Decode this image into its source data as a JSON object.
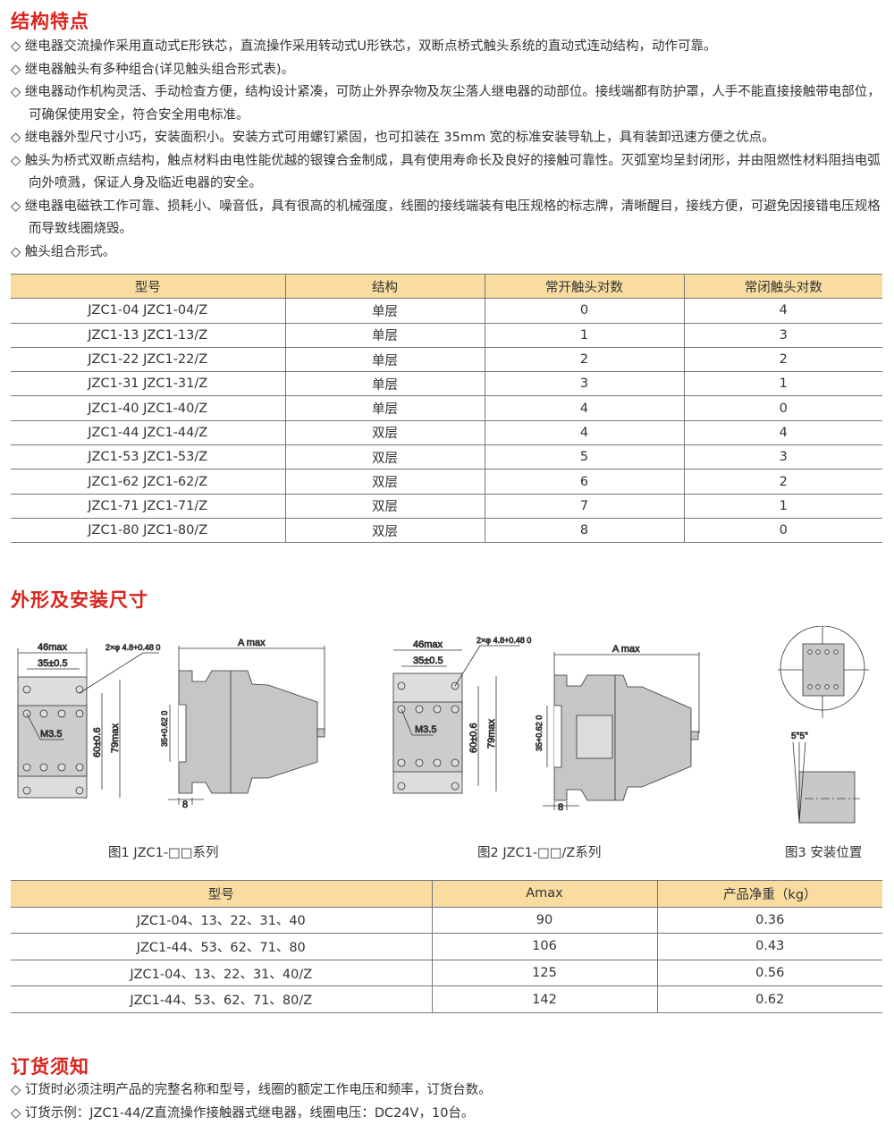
{
  "sections": {
    "features": "结构特点",
    "dimensions": "外形及安装尺寸",
    "ordering": "订货须知"
  },
  "features": [
    "◇ 继电器交流操作采用直动式E形铁芯，直流操作采用转动式U形铁芯，双断点桥式触头系统的直动式连动结构，动作可靠。",
    "◇ 继电器触头有多种组合(详见触头组合形式表)。",
    "◇ 继电器动作机构灵活、手动检查方便，结构设计紧凑，可防止外界杂物及灰尘落人继电器的动部位。接线端都有防护罩，人手不能直接接触带电部位，可确保使用安全，符合安全用电标准。",
    "◇ 继电器外型尺寸小巧，安装面积小。安装方式可用螺钉紧固，也可扣装在 35mm 宽的标准安装导轨上，具有装卸迅速方便之优点。",
    "◇ 触头为桥式双断点结构，触点材料由电性能优越的银镍合金制成，具有使用寿命长及良好的接触可靠性。灭弧室均呈封闭形，并由阻燃性材料阻挡电弧向外喷溅，保证人身及临近电器的安全。",
    "◇ 继电器电磁铁工作可靠、损耗小、噪音低，具有很高的机械强度，线圈的接线端装有电压规格的标志牌，清晰醒目，接线方便，可避免因接错电压规格而导致线圈烧毁。",
    "◇ 触头组合形式。"
  ],
  "contact_table": {
    "headers": [
      "型号",
      "结构",
      "常开触头对数",
      "常闭触头对数"
    ],
    "rows": [
      [
        "JZC1-04  JZC1-04/Z",
        "单层",
        "0",
        "4"
      ],
      [
        "JZC1-13  JZC1-13/Z",
        "单层",
        "1",
        "3"
      ],
      [
        "JZC1-22  JZC1-22/Z",
        "单层",
        "2",
        "2"
      ],
      [
        "JZC1-31  JZC1-31/Z",
        "单层",
        "3",
        "1"
      ],
      [
        "JZC1-40  JZC1-40/Z",
        "单层",
        "4",
        "0"
      ],
      [
        "JZC1-44  JZC1-44/Z",
        "双层",
        "4",
        "4"
      ],
      [
        "JZC1-53  JZC1-53/Z",
        "双层",
        "5",
        "3"
      ],
      [
        "JZC1-62  JZC1-62/Z",
        "双层",
        "6",
        "2"
      ],
      [
        "JZC1-71  JZC1-71/Z",
        "双层",
        "7",
        "1"
      ],
      [
        "JZC1-80  JZC1-80/Z",
        "双层",
        "8",
        "0"
      ]
    ]
  },
  "figures": {
    "labels": {
      "w46": "46max",
      "w35": "35±0.5",
      "hole1": "2×φ 4.8+0.48 0",
      "hole2": "2×φ 4.8+0.48 0",
      "m35": "M3.5",
      "h60": "60±0.6",
      "h79": "79max",
      "amax": "A max",
      "rail1": "35+0.62 0",
      "rail2": "35+0.62 0",
      "w8": "8",
      "angle": "5°5°"
    },
    "captions": [
      "图1 JZC1-□□系列",
      "图2 JZC1-□□/Z系列",
      "图3 安装位置"
    ]
  },
  "size_table": {
    "headers": [
      "型号",
      "Amax",
      "产品净重（kg）"
    ],
    "rows": [
      [
        "JZC1-04、13、22、31、40",
        "90",
        "0.36"
      ],
      [
        "JZC1-44、53、62、71、80",
        "106",
        "0.43"
      ],
      [
        "JZC1-04、13、22、31、40/Z",
        "125",
        "0.56"
      ],
      [
        "JZC1-44、53、62、71、80/Z",
        "142",
        "0.62"
      ]
    ]
  },
  "ordering": [
    "◇ 订货时必须注明产品的完整名称和型号，线圈的额定工作电压和频率，订货台数。",
    "◇ 订货示例：JZC1-44/Z直流操作接触器式继电器，线圈电压：DC24V，10台。"
  ],
  "colors": {
    "heading": "#d8241c",
    "table_header": "#f8dca0",
    "drawing_fill": "#c8c8c8"
  }
}
